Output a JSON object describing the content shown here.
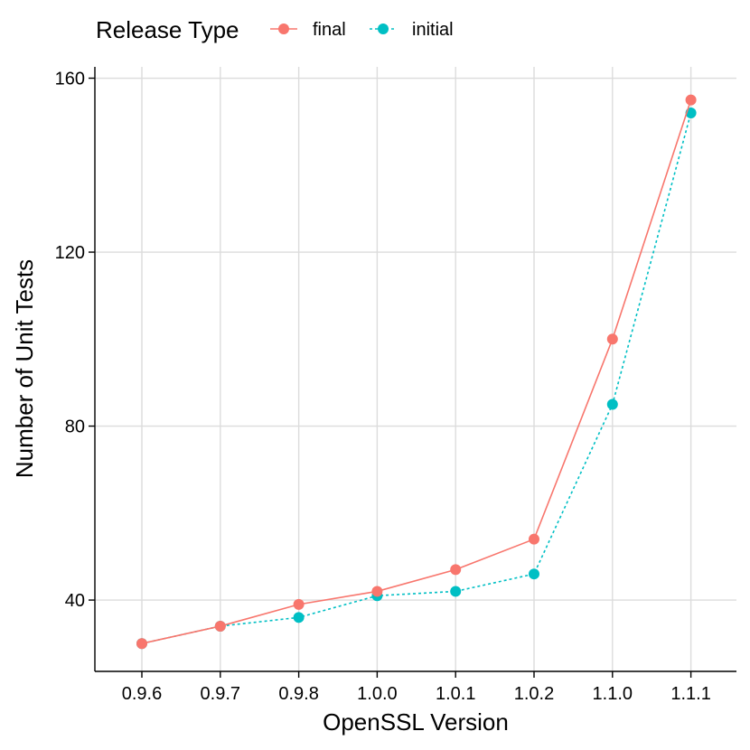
{
  "chart_data": {
    "type": "line",
    "xlabel": "OpenSSL Version",
    "ylabel": "Number of Unit Tests",
    "categories": [
      "0.9.6",
      "0.9.7",
      "0.9.8",
      "1.0.0",
      "1.0.1",
      "1.0.2",
      "1.1.0",
      "1.1.1"
    ],
    "ylim": [
      23.6,
      162.6
    ],
    "yticks": [
      40,
      80,
      120,
      160
    ],
    "y_tick_labels": [
      "40",
      "80",
      "120",
      "160"
    ],
    "grid": true,
    "legend": {
      "title": "Release Type",
      "placement": "top-left"
    },
    "series": [
      {
        "name": "final",
        "color": "#f8766d",
        "line_style": "solid",
        "values": [
          30,
          34,
          39,
          42,
          47,
          54,
          100,
          155
        ]
      },
      {
        "name": "initial",
        "color": "#00bfc4",
        "line_style": "dotted",
        "values": [
          30,
          34,
          36,
          41,
          42,
          46,
          85,
          152
        ]
      }
    ]
  }
}
